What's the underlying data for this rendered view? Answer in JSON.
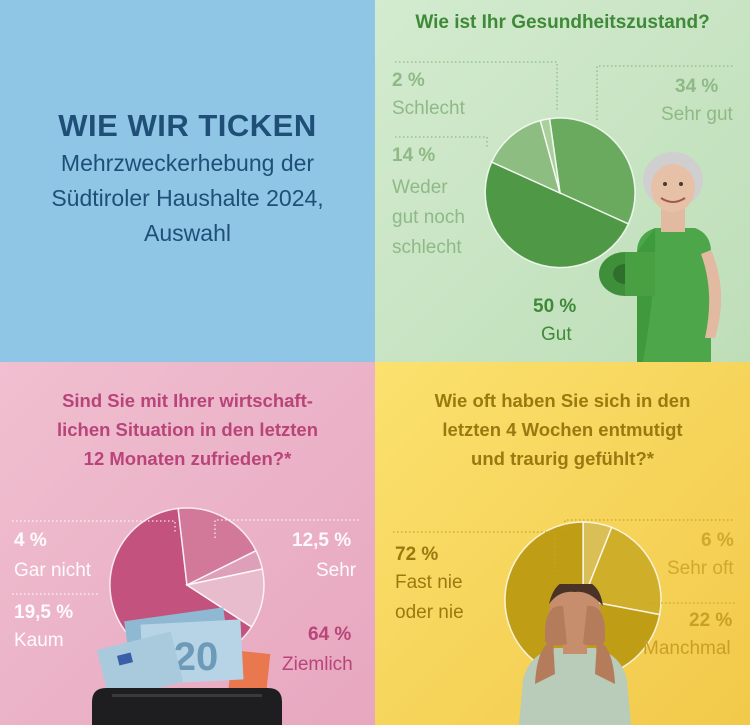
{
  "intro": {
    "headline": "WIE WIR TICKEN",
    "subtitle_lines": [
      "Mehrzweckerhebung der",
      "Südtiroler Haushalte 2024,",
      "Auswahl"
    ]
  },
  "colors": {
    "health": [
      "#6aaa5e",
      "#4f9845",
      "#8dbd80",
      "#a9cf9c"
    ],
    "econ": [
      "#c3527e",
      "#d27899",
      "#dea0b8",
      "#e8bccc"
    ],
    "mood": [
      "#bf9d14",
      "#cfae2a",
      "#d9bf55"
    ]
  },
  "chart_data": [
    {
      "type": "pie",
      "title": "Wie ist Ihr Gesundheitszustand?",
      "slices": [
        {
          "label": "Sehr gut",
          "value": 34,
          "value_text": "34 %"
        },
        {
          "label": "Gut",
          "value": 50,
          "value_text": "50 %"
        },
        {
          "label": "Weder gut noch schlecht",
          "value": 14,
          "value_text": "14 %"
        },
        {
          "label": "Schlecht",
          "value": 2,
          "value_text": "2 %"
        }
      ]
    },
    {
      "type": "pie",
      "title": "Sind Sie mit Ihrer wirtschaftlichen Situation in den letzten 12 Monaten zufrieden?*",
      "title_lines": [
        "Sind Sie mit Ihrer wirtschaft-",
        "lichen Situation in den letzten",
        "12 Monaten zufrieden?*"
      ],
      "slices": [
        {
          "label": "Ziemlich",
          "value": 64,
          "value_text": "64 %"
        },
        {
          "label": "Kaum",
          "value": 19.5,
          "value_text": "19,5 %"
        },
        {
          "label": "Gar nicht",
          "value": 4,
          "value_text": "4 %"
        },
        {
          "label": "Sehr",
          "value": 12.5,
          "value_text": "12,5 %"
        }
      ]
    },
    {
      "type": "pie",
      "title": "Wie oft haben Sie sich in den letzten 4 Wochen entmutigt und traurig gefühlt?*",
      "title_lines": [
        "Wie oft haben Sie sich in den",
        "letzten 4 Wochen entmutigt",
        "und traurig gefühlt?*"
      ],
      "slices": [
        {
          "label": "Fast nie oder nie",
          "value": 72,
          "value_text": "72 %"
        },
        {
          "label": "Manchmal",
          "value": 22,
          "value_text": "22 %"
        },
        {
          "label": "Sehr oft",
          "value": 6,
          "value_text": "6 %"
        }
      ]
    }
  ],
  "labels": {
    "health": {
      "sehr_gut": [
        "Sehr gut"
      ],
      "gut": [
        "Gut"
      ],
      "weder": [
        "Weder",
        "gut noch",
        "schlecht"
      ],
      "schlecht": [
        "Schlecht"
      ]
    },
    "econ": {
      "sehr": [
        "Sehr"
      ],
      "ziemlich": [
        "Ziemlich"
      ],
      "kaum": [
        "Kaum"
      ],
      "gar_nicht": [
        "Gar nicht"
      ]
    },
    "mood": {
      "sehr_oft": [
        "Sehr oft"
      ],
      "manchmal": [
        "Manchmal"
      ],
      "fast_nie": [
        "Fast nie",
        "oder nie"
      ]
    }
  }
}
